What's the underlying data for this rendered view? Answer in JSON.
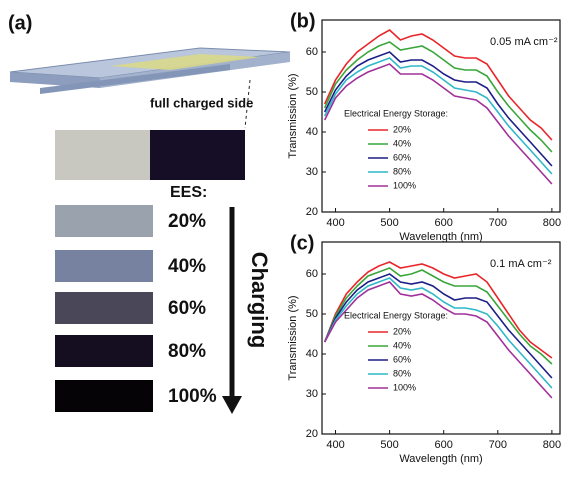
{
  "panel_a": {
    "label": "(a)",
    "device_note": "full charged side",
    "ees_label": "EES:",
    "levels": [
      "20%",
      "40%",
      "60%",
      "80%",
      "100%"
    ],
    "arrow_label": "Charging"
  },
  "chart_data": [
    {
      "type": "line",
      "panel_label": "(b)",
      "annotation": "0.05 mA cm⁻²",
      "legend_title": "Electrical Energy Storage:",
      "x_label": "Wavelength (nm)",
      "y_label": "Transmission (%)",
      "x": [
        380,
        400,
        420,
        440,
        460,
        480,
        500,
        520,
        540,
        560,
        580,
        600,
        620,
        640,
        660,
        680,
        700,
        720,
        740,
        760,
        780,
        800
      ],
      "series": [
        {
          "name": "20%",
          "color": "#e8262a",
          "values": [
            47,
            53,
            57,
            60,
            62,
            64,
            65.5,
            63,
            64,
            64.5,
            63,
            61,
            59,
            58.5,
            58.5,
            57,
            53,
            49,
            46,
            43,
            41,
            38
          ]
        },
        {
          "name": "40%",
          "color": "#3aa63a",
          "values": [
            46,
            52,
            55.5,
            58,
            60,
            61.5,
            62.5,
            60.5,
            61,
            61.5,
            60,
            58,
            56,
            55.5,
            55.5,
            54,
            50,
            46.5,
            43.5,
            40.5,
            38,
            35
          ]
        },
        {
          "name": "60%",
          "color": "#1c1f86",
          "values": [
            45,
            50.5,
            54,
            56.5,
            58,
            59,
            60,
            57.5,
            58,
            58,
            56.5,
            54.5,
            53,
            52.5,
            52.5,
            51,
            47,
            43.5,
            40.5,
            37.5,
            34.5,
            31.5
          ]
        },
        {
          "name": "80%",
          "color": "#2fb8c8",
          "values": [
            44,
            49.5,
            53,
            55,
            56.5,
            57.5,
            58.5,
            56,
            56.5,
            56.5,
            55,
            53,
            51,
            50.5,
            50,
            48.5,
            45,
            41.5,
            38.5,
            35.5,
            32.5,
            29.5
          ]
        },
        {
          "name": "100%",
          "color": "#a1309a",
          "values": [
            43,
            48.5,
            51.5,
            53.5,
            55,
            56,
            57,
            54.5,
            54.5,
            54.5,
            53,
            51,
            49,
            48.5,
            48,
            46,
            42.5,
            39,
            36,
            33,
            30,
            27
          ]
        }
      ],
      "xlim": [
        375,
        815
      ],
      "ylim": [
        20,
        68
      ],
      "xticks": [
        400,
        500,
        600,
        700,
        800
      ],
      "yticks": [
        20,
        30,
        40,
        50,
        60
      ]
    },
    {
      "type": "line",
      "panel_label": "(c)",
      "annotation": "0.1 mA cm⁻²",
      "legend_title": "Electrical Energy Storage:",
      "x_label": "Wavelength (nm)",
      "y_label": "Transmission (%)",
      "x": [
        380,
        400,
        420,
        440,
        460,
        480,
        500,
        520,
        540,
        560,
        580,
        600,
        620,
        640,
        660,
        680,
        700,
        720,
        740,
        760,
        780,
        800
      ],
      "series": [
        {
          "name": "20%",
          "color": "#e8262a",
          "values": [
            43,
            50,
            55,
            58,
            60.5,
            62,
            63,
            61.5,
            62,
            62.5,
            61.5,
            60,
            59,
            59.5,
            60,
            58,
            54,
            50,
            46,
            43,
            41,
            39
          ]
        },
        {
          "name": "40%",
          "color": "#3aa63a",
          "values": [
            43,
            49.5,
            54,
            57,
            59.5,
            60.5,
            61.5,
            59.5,
            60,
            61,
            59.5,
            58,
            57,
            57,
            57,
            55.5,
            52,
            48.5,
            45,
            42,
            40,
            37.5
          ]
        },
        {
          "name": "60%",
          "color": "#1c1f86",
          "values": [
            43,
            49,
            53,
            56,
            58,
            59,
            60,
            58,
            57.5,
            58,
            57,
            55,
            53.5,
            54,
            54,
            53,
            49.5,
            46,
            43,
            40,
            37,
            34
          ]
        },
        {
          "name": "80%",
          "color": "#2fb8c8",
          "values": [
            43,
            48.5,
            52,
            55,
            57,
            58,
            59,
            56.5,
            56,
            56.5,
            55,
            53,
            51.5,
            51.5,
            51,
            50,
            47,
            43.5,
            40.5,
            37.5,
            34.5,
            31.5
          ]
        },
        {
          "name": "100%",
          "color": "#a1309a",
          "values": [
            43,
            48,
            51,
            54,
            56,
            57,
            58,
            55,
            54.5,
            55,
            53.5,
            51.5,
            50,
            50,
            49.5,
            48,
            44.5,
            41,
            38,
            35,
            32,
            29
          ]
        }
      ],
      "xlim": [
        375,
        815
      ],
      "ylim": [
        20,
        68
      ],
      "xticks": [
        400,
        500,
        600,
        700,
        800
      ],
      "yticks": [
        20,
        30,
        40,
        50,
        60
      ]
    }
  ]
}
